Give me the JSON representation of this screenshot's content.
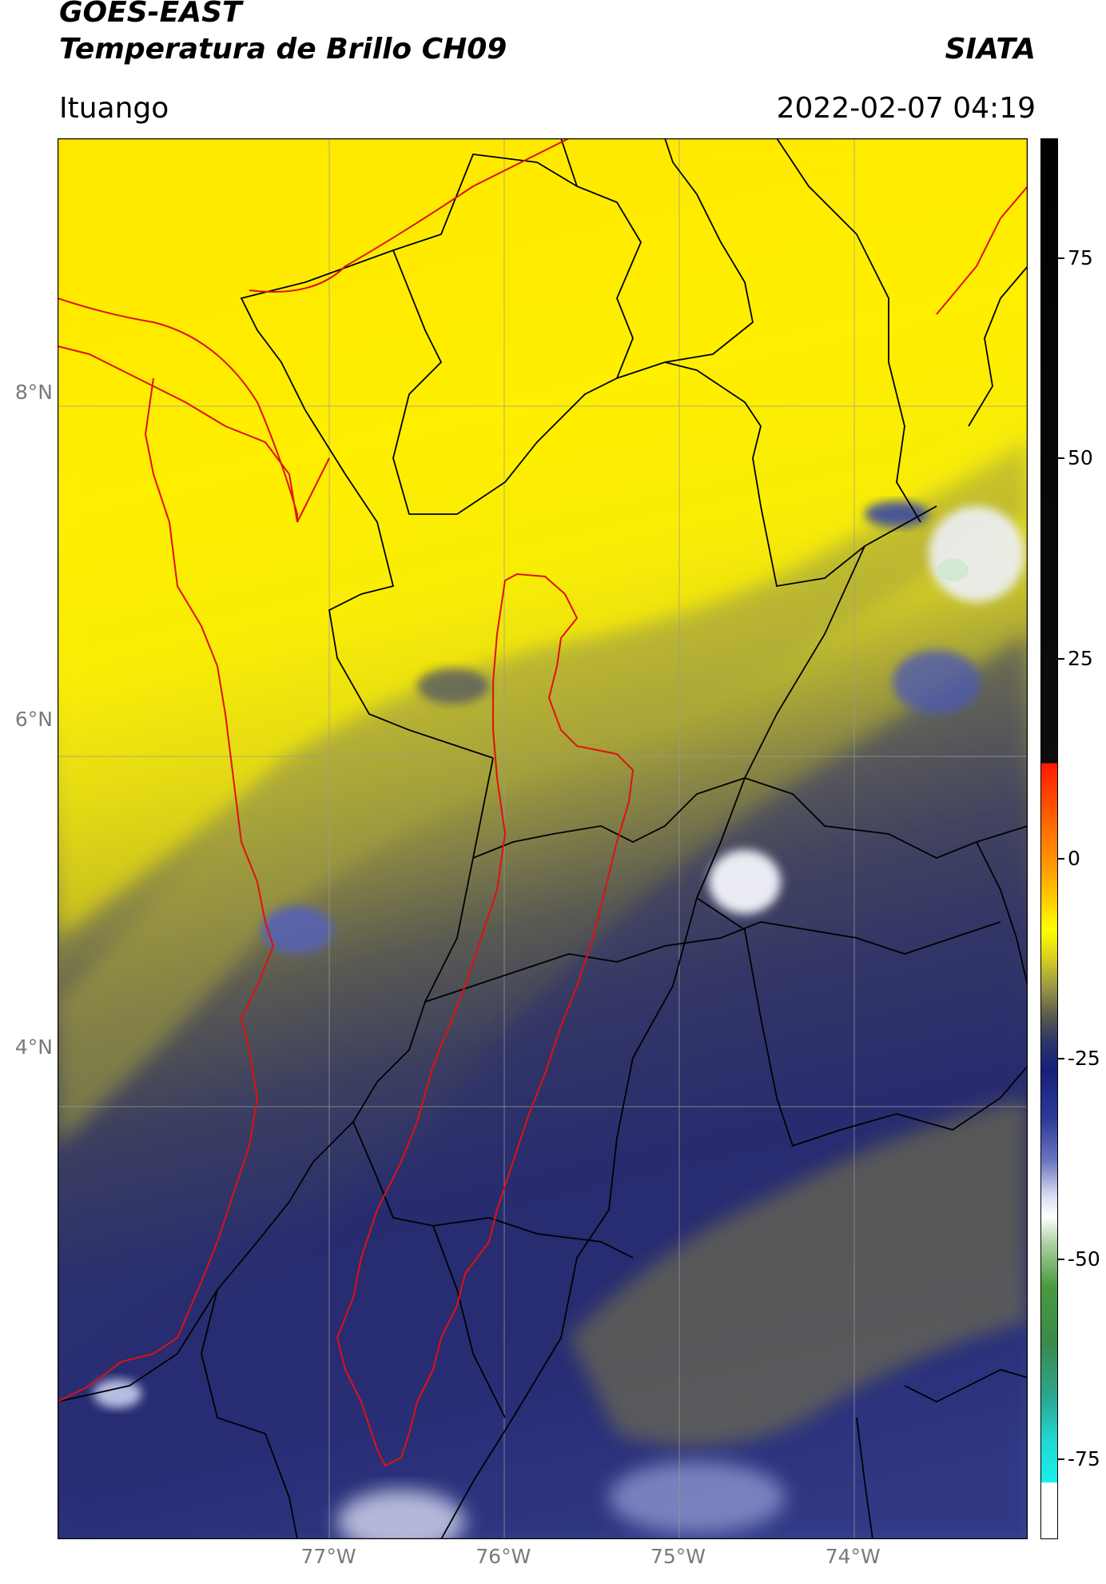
{
  "header": {
    "app_title": "GOES-EAST",
    "product_title": "Temperatura de Brillo CH09",
    "org": "SIATA",
    "region": "Ituango",
    "timestamp": "2022-02-07 04:19"
  },
  "map": {
    "lon_range": [
      -78.55,
      -73.0
    ],
    "lat_range": [
      1.0,
      9.55
    ],
    "lat_labels": [
      {
        "value": 8,
        "text": "8°N"
      },
      {
        "value": 6,
        "text": "6°N"
      },
      {
        "value": 4,
        "text": "4°N"
      }
    ],
    "lon_labels": [
      {
        "value": -77,
        "text": "77°W"
      },
      {
        "value": -76,
        "text": "76°W"
      },
      {
        "value": -75,
        "text": "75°W"
      },
      {
        "value": -74,
        "text": "74°W"
      }
    ],
    "colors": {
      "warm_yellow": "#ffe800",
      "olive": "#a8a63a",
      "dark_olive": "#5d5d4a",
      "navy": "#222a78",
      "cold_white": "#e8ecf8",
      "coast_red": "#e01010",
      "border_black": "#000000",
      "grid_gray": "#9a9a9a"
    }
  },
  "colorbar": {
    "min": -85,
    "max": 90,
    "ticks": [
      {
        "value": 75,
        "text": "75"
      },
      {
        "value": 50,
        "text": "50"
      },
      {
        "value": 25,
        "text": "25"
      },
      {
        "value": 0,
        "text": "0"
      },
      {
        "value": -25,
        "text": "-25"
      },
      {
        "value": -50,
        "text": "-50"
      },
      {
        "value": -75,
        "text": "-75"
      }
    ]
  }
}
